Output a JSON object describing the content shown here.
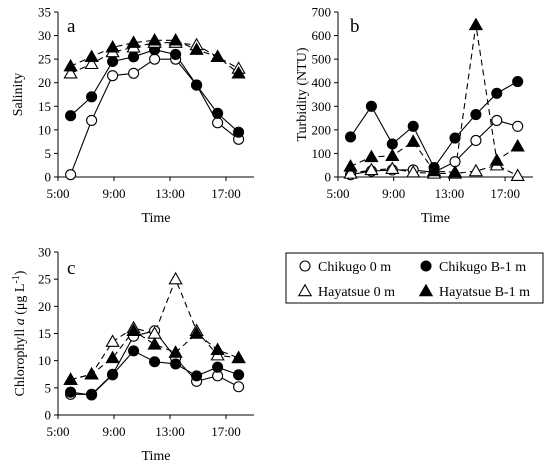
{
  "legend": {
    "entries": [
      {
        "label": "Chikugo 0 m",
        "marker": "circle",
        "fill": "#ffffff",
        "dashed": false
      },
      {
        "label": "Chikugo B-1 m",
        "marker": "circle",
        "fill": "#000000",
        "dashed": false
      },
      {
        "label": "Hayatsue 0 m",
        "marker": "triangle",
        "fill": "#ffffff",
        "dashed": true
      },
      {
        "label": "Hayatsue B-1 m",
        "marker": "triangle",
        "fill": "#000000",
        "dashed": true
      }
    ]
  },
  "chart_data": [
    {
      "type": "line",
      "panel_label": "a",
      "xlabel": "Time",
      "ylabel": "Salinity",
      "x_tick_labels": [
        "5:00",
        "9:00",
        "13:00",
        "17:00"
      ],
      "x_ticks_hours": [
        5,
        9,
        13,
        17
      ],
      "xlim_hours": [
        5,
        19
      ],
      "ylim": [
        0,
        35
      ],
      "y_ticks": [
        0,
        5,
        10,
        15,
        20,
        25,
        30,
        35
      ],
      "grid": false,
      "series": [
        {
          "name": "Chikugo 0 m",
          "x": [
            5.9,
            7.4,
            8.9,
            10.4,
            11.9,
            13.4,
            14.9,
            16.4,
            17.9
          ],
          "values": [
            0.5,
            12,
            21.5,
            22,
            25,
            25,
            19.5,
            11.5,
            8
          ]
        },
        {
          "name": "Chikugo B-1 m",
          "x": [
            5.9,
            7.4,
            8.9,
            10.4,
            11.9,
            13.4,
            14.9,
            16.4,
            17.9
          ],
          "values": [
            13,
            17,
            24.5,
            25.5,
            27,
            26,
            19.5,
            13.5,
            9.5
          ]
        },
        {
          "name": "Hayatsue 0 m",
          "x": [
            5.9,
            7.4,
            8.9,
            10.4,
            11.9,
            13.4,
            14.9,
            16.4,
            17.9
          ],
          "values": [
            22,
            24,
            26.5,
            27.5,
            28.5,
            28.5,
            28,
            25.5,
            23
          ]
        },
        {
          "name": "Hayatsue B-1 m",
          "x": [
            5.9,
            7.4,
            8.9,
            10.4,
            11.9,
            13.4,
            14.9,
            16.4,
            17.9
          ],
          "values": [
            23.5,
            25.5,
            27.5,
            28.5,
            29,
            29,
            27,
            25.5,
            22
          ]
        }
      ]
    },
    {
      "type": "line",
      "panel_label": "b",
      "xlabel": "Time",
      "ylabel": "Turbidity (NTU)",
      "x_tick_labels": [
        "5:00",
        "9:00",
        "13:00",
        "17:00"
      ],
      "x_ticks_hours": [
        5,
        9,
        13,
        17
      ],
      "xlim_hours": [
        5,
        19
      ],
      "ylim": [
        0,
        700
      ],
      "y_ticks": [
        0,
        100,
        200,
        300,
        400,
        500,
        600,
        700
      ],
      "grid": false,
      "series": [
        {
          "name": "Chikugo 0 m",
          "x": [
            5.9,
            7.4,
            8.9,
            10.4,
            11.9,
            13.4,
            14.9,
            16.4,
            17.9
          ],
          "values": [
            10,
            25,
            30,
            30,
            20,
            65,
            155,
            240,
            215
          ]
        },
        {
          "name": "Chikugo B-1 m",
          "x": [
            5.9,
            7.4,
            8.9,
            10.4,
            11.9,
            13.4,
            14.9,
            16.4,
            17.9
          ],
          "values": [
            170,
            300,
            140,
            215,
            40,
            165,
            265,
            355,
            405
          ]
        },
        {
          "name": "Hayatsue 0 m",
          "x": [
            5.9,
            7.4,
            8.9,
            10.4,
            11.9,
            13.4,
            14.9,
            16.4,
            17.9
          ],
          "values": [
            15,
            30,
            35,
            20,
            15,
            15,
            25,
            50,
            5
          ]
        },
        {
          "name": "Hayatsue B-1 m",
          "x": [
            5.9,
            7.4,
            8.9,
            10.4,
            11.9,
            13.4,
            14.9,
            16.4,
            17.9
          ],
          "values": [
            45,
            85,
            90,
            150,
            25,
            20,
            645,
            70,
            130
          ]
        }
      ]
    },
    {
      "type": "line",
      "panel_label": "c",
      "xlabel": "Time",
      "ylabel": "Chlorophyll a (μg L⁻¹)",
      "ylabel_parts": {
        "prefix": "Chlorophyll ",
        "italic": "a",
        "unit": " (μg L",
        "exponent": "-1",
        "close": ")"
      },
      "x_tick_labels": [
        "5:00",
        "9:00",
        "13:00",
        "17:00"
      ],
      "x_ticks_hours": [
        5,
        9,
        13,
        17
      ],
      "xlim_hours": [
        5,
        19
      ],
      "ylim": [
        0,
        30
      ],
      "y_ticks": [
        0,
        5,
        10,
        15,
        20,
        25,
        30
      ],
      "grid": false,
      "series": [
        {
          "name": "Chikugo 0 m",
          "x": [
            5.9,
            7.4,
            8.9,
            10.4,
            11.9,
            13.4,
            14.9,
            16.4,
            17.9
          ],
          "values": [
            3.8,
            3.8,
            7.5,
            14.5,
            15.5,
            10.5,
            6.2,
            7.2,
            5.2
          ]
        },
        {
          "name": "Chikugo B-1 m",
          "x": [
            5.9,
            7.4,
            8.9,
            10.4,
            11.9,
            13.4,
            14.9,
            16.4,
            17.9
          ],
          "values": [
            4.2,
            3.7,
            7.4,
            11.8,
            9.8,
            9.4,
            7.2,
            8.8,
            7.4
          ]
        },
        {
          "name": "Hayatsue 0 m",
          "x": [
            5.9,
            7.4,
            8.9,
            10.4,
            11.9,
            13.4,
            14.9,
            16.4,
            17.9
          ],
          "values": [
            6.5,
            7.5,
            13.5,
            16,
            15,
            25,
            15.5,
            11,
            10.5
          ]
        },
        {
          "name": "Hayatsue B-1 m",
          "x": [
            5.9,
            7.4,
            8.9,
            10.4,
            11.9,
            13.4,
            14.9,
            16.4,
            17.9
          ],
          "values": [
            6.5,
            7.5,
            10.5,
            15.5,
            13,
            11.5,
            15,
            12,
            10.5
          ]
        }
      ]
    }
  ]
}
